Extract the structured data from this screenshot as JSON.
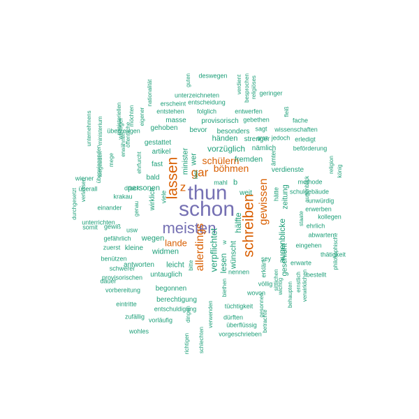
{
  "colors": {
    "teal": "#1b9e77",
    "orange": "#d95f02",
    "purple": "#7570b3"
  },
  "words": [
    {
      "text": "schon",
      "color": "purple"
    },
    {
      "text": "thun",
      "color": "purple"
    },
    {
      "text": "meisten",
      "color": "purple"
    },
    {
      "text": "schreiben",
      "color": "orange"
    },
    {
      "text": "lassen",
      "color": "orange"
    },
    {
      "text": "gar",
      "color": "orange"
    },
    {
      "text": "z",
      "color": "orange"
    },
    {
      "text": "allerdings",
      "color": "orange"
    },
    {
      "text": "gewissen",
      "color": "orange"
    },
    {
      "text": "böhmen",
      "color": "orange"
    },
    {
      "text": "schülern",
      "color": "orange"
    },
    {
      "text": "lande",
      "color": "orange"
    },
    {
      "text": "verpflichtet",
      "color": "teal"
    },
    {
      "text": "hälfte",
      "color": "teal"
    },
    {
      "text": "vorzüglich",
      "color": "teal"
    },
    {
      "text": "augenblicke",
      "color": "teal"
    },
    {
      "text": "händen",
      "color": "teal"
    },
    {
      "text": "fremden",
      "color": "teal"
    },
    {
      "text": "minister",
      "color": "teal"
    },
    {
      "text": "personen",
      "color": "teal"
    },
    {
      "text": "widmen",
      "color": "teal"
    },
    {
      "text": "leicht",
      "color": "teal"
    },
    {
      "text": "wegen",
      "color": "teal"
    },
    {
      "text": "wirklich",
      "color": "teal"
    },
    {
      "text": "lesen",
      "color": "teal"
    },
    {
      "text": "wünscht",
      "color": "teal"
    },
    {
      "text": "zeitung",
      "color": "teal"
    },
    {
      "text": "geschieht",
      "color": "teal"
    },
    {
      "text": "gestattet",
      "color": "teal"
    },
    {
      "text": "masse",
      "color": "teal"
    },
    {
      "text": "provisorisch",
      "color": "teal"
    },
    {
      "text": "besonders",
      "color": "teal"
    },
    {
      "text": "gehoben",
      "color": "teal"
    },
    {
      "text": "bevor",
      "color": "teal"
    },
    {
      "text": "bald",
      "color": "teal"
    },
    {
      "text": "fast",
      "color": "teal"
    },
    {
      "text": "artikel",
      "color": "teal"
    },
    {
      "text": "weit",
      "color": "teal"
    },
    {
      "text": "antworten",
      "color": "teal"
    },
    {
      "text": "untauglich",
      "color": "teal"
    },
    {
      "text": "begonnen",
      "color": "teal"
    },
    {
      "text": "berechtigung",
      "color": "teal"
    },
    {
      "text": "kleine",
      "color": "teal"
    },
    {
      "text": "verdienste",
      "color": "teal"
    },
    {
      "text": "strenger",
      "color": "teal"
    },
    {
      "text": "nämlich",
      "color": "teal"
    },
    {
      "text": "gebethen",
      "color": "teal"
    },
    {
      "text": "folglich",
      "color": "teal"
    },
    {
      "text": "entstehen",
      "color": "teal"
    },
    {
      "text": "entscheidung",
      "color": "teal"
    },
    {
      "text": "entwerfen",
      "color": "teal"
    },
    {
      "text": "unterzeichneten",
      "color": "teal"
    },
    {
      "text": "erscheint",
      "color": "teal"
    },
    {
      "text": "deswegen",
      "color": "teal"
    },
    {
      "text": "geringer",
      "color": "teal"
    },
    {
      "text": "sagt",
      "color": "teal"
    },
    {
      "text": "wissenschaften",
      "color": "teal"
    },
    {
      "text": "fache",
      "color": "teal"
    },
    {
      "text": "erledigt",
      "color": "teal"
    },
    {
      "text": "beförderung",
      "color": "teal"
    },
    {
      "text": "jedoch",
      "color": "teal"
    },
    {
      "text": "methode",
      "color": "teal"
    },
    {
      "text": "schulgebäude",
      "color": "teal"
    },
    {
      "text": "unwürdig",
      "color": "teal"
    },
    {
      "text": "erwerben",
      "color": "teal"
    },
    {
      "text": "kollegen",
      "color": "teal"
    },
    {
      "text": "ehrlich",
      "color": "teal"
    },
    {
      "text": "abwarten",
      "color": "teal"
    },
    {
      "text": "eingehen",
      "color": "teal"
    },
    {
      "text": "thätigkeit",
      "color": "teal"
    },
    {
      "text": "erwarte",
      "color": "teal"
    },
    {
      "text": "bestellt",
      "color": "teal"
    },
    {
      "text": "völlig",
      "color": "teal"
    },
    {
      "text": "wovon",
      "color": "teal"
    },
    {
      "text": "tüchtigkeit",
      "color": "teal"
    },
    {
      "text": "nennen",
      "color": "teal"
    },
    {
      "text": "erklärt",
      "color": "teal"
    },
    {
      "text": "dürften",
      "color": "teal"
    },
    {
      "text": "überflüssig",
      "color": "teal"
    },
    {
      "text": "vorgeschrieben",
      "color": "teal"
    },
    {
      "text": "entschuldigung",
      "color": "teal"
    },
    {
      "text": "vorläufig",
      "color": "teal"
    },
    {
      "text": "wohles",
      "color": "teal"
    },
    {
      "text": "zufällig",
      "color": "teal"
    },
    {
      "text": "eintritte",
      "color": "teal"
    },
    {
      "text": "vorbereitung",
      "color": "teal"
    },
    {
      "text": "provisorischen",
      "color": "teal"
    },
    {
      "text": "schwerer",
      "color": "teal"
    },
    {
      "text": "benützen",
      "color": "teal"
    },
    {
      "text": "zuerst",
      "color": "teal"
    },
    {
      "text": "dauer",
      "color": "teal"
    },
    {
      "text": "unterrichten",
      "color": "teal"
    },
    {
      "text": "gefährlich",
      "color": "teal"
    },
    {
      "text": "usw",
      "color": "teal"
    },
    {
      "text": "somit",
      "color": "teal"
    },
    {
      "text": "gewiß",
      "color": "teal"
    },
    {
      "text": "einander",
      "color": "teal"
    },
    {
      "text": "krakau",
      "color": "teal"
    },
    {
      "text": "druck",
      "color": "teal"
    },
    {
      "text": "überall",
      "color": "teal"
    },
    {
      "text": "wiener",
      "color": "teal"
    },
    {
      "text": "überzeugen",
      "color": "teal"
    },
    {
      "text": "weniger",
      "color": "teal"
    },
    {
      "text": "mahl",
      "color": "teal"
    },
    {
      "text": "b",
      "color": "teal"
    },
    {
      "text": "sey",
      "color": "teal"
    },
    {
      "text": "hätte",
      "color": "teal"
    },
    {
      "text": "graz",
      "color": "teal"
    },
    {
      "text": "unternehmens",
      "color": "teal"
    },
    {
      "text": "ministerium",
      "color": "teal"
    },
    {
      "text": "ministeriellen",
      "color": "teal"
    },
    {
      "text": "möchten",
      "color": "teal"
    },
    {
      "text": "eigener",
      "color": "teal"
    },
    {
      "text": "nationalität",
      "color": "teal"
    },
    {
      "text": "öffentliche",
      "color": "teal"
    },
    {
      "text": "erwähnen",
      "color": "teal"
    },
    {
      "text": "ehrfurcht",
      "color": "teal"
    },
    {
      "text": "genau",
      "color": "teal"
    },
    {
      "text": "viele",
      "color": "teal"
    },
    {
      "text": "mege",
      "color": "teal"
    },
    {
      "text": "wegenden",
      "color": "teal"
    },
    {
      "text": "überwiegenden",
      "color": "teal"
    },
    {
      "text": "verlassen",
      "color": "teal"
    },
    {
      "text": "durchgesetzt",
      "color": "teal"
    },
    {
      "text": "guten",
      "color": "teal"
    },
    {
      "text": "verdient",
      "color": "teal"
    },
    {
      "text": "besprochen",
      "color": "teal"
    },
    {
      "text": "religiöses",
      "color": "teal"
    },
    {
      "text": "fleiß",
      "color": "teal"
    },
    {
      "text": "ämter",
      "color": "teal"
    },
    {
      "text": "augenblick",
      "color": "teal"
    },
    {
      "text": "staate",
      "color": "teal"
    },
    {
      "text": "könig",
      "color": "teal"
    },
    {
      "text": "religion",
      "color": "teal"
    },
    {
      "text": "philosophische",
      "color": "teal"
    },
    {
      "text": "ernstlich",
      "color": "teal"
    },
    {
      "text": "verwirklichen",
      "color": "teal"
    },
    {
      "text": "behaupten",
      "color": "teal"
    },
    {
      "text": "wichtig",
      "color": "teal"
    },
    {
      "text": "sittlichen",
      "color": "teal"
    },
    {
      "text": "betrachte",
      "color": "teal"
    },
    {
      "text": "gesonnen",
      "color": "teal"
    },
    {
      "text": "biethen",
      "color": "teal"
    },
    {
      "text": "verwenden",
      "color": "teal"
    },
    {
      "text": "schlechten",
      "color": "teal"
    },
    {
      "text": "richtigen",
      "color": "teal"
    },
    {
      "text": "dingen",
      "color": "teal"
    },
    {
      "text": "bitte",
      "color": "teal"
    },
    {
      "text": "wer",
      "color": "teal"
    },
    {
      "text": "last",
      "color": "teal"
    },
    {
      "text": "w",
      "color": "teal"
    }
  ]
}
